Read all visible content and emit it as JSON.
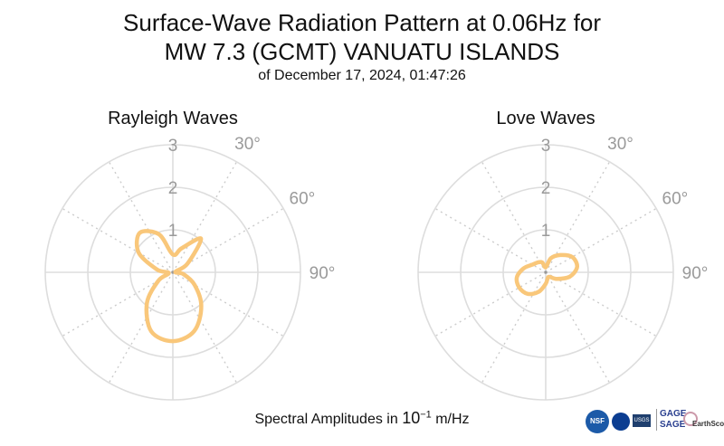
{
  "title_line1": "Surface-Wave Radiation Pattern at 0.06Hz for",
  "title_line2": "MW 7.3 (GCMT) VANUATU ISLANDS",
  "subtitle": "of December 17, 2024, 01:47:26",
  "footer": {
    "prefix": "Spectral Amplitudes in ",
    "base": "10",
    "exponent": "−1",
    "unit": " m/Hz"
  },
  "logos": {
    "nsf": "NSF",
    "usgs": "USGS",
    "gage": "GAGE",
    "sage": "SAGE",
    "earthscope": "EarthScope"
  },
  "colors": {
    "pattern": "#f9c77a",
    "grid_solid": "#dddddd",
    "grid_dotted": "#cccccc",
    "tick_text": "#9a9a9a"
  },
  "chart_data": [
    {
      "type": "polar-line",
      "title": "Rayleigh Waves",
      "r_ticks": [
        1,
        2,
        3
      ],
      "r_max": 3,
      "theta_ticks": [
        {
          "deg": 30,
          "label": "30°"
        },
        {
          "deg": 60,
          "label": "60°"
        },
        {
          "deg": 90,
          "label": "90°"
        }
      ],
      "theta_zero": "north",
      "theta_direction": "clockwise",
      "series": [
        {
          "theta_deg": [
            0,
            20,
            40,
            60,
            80,
            100,
            120,
            140,
            160,
            180,
            200,
            220,
            240,
            260,
            280,
            300,
            320,
            340,
            360
          ],
          "r": [
            0.42,
            0.6,
            1.03,
            0.39,
            0.06,
            0.25,
            0.59,
            1.04,
            1.47,
            1.62,
            1.48,
            0.95,
            0.39,
            0.1,
            0.38,
            0.93,
            1.21,
            0.95,
            0.42
          ]
        }
      ]
    },
    {
      "type": "polar-line",
      "title": "Love Waves",
      "r_ticks": [
        1,
        2,
        3
      ],
      "r_max": 3,
      "theta_ticks": [
        {
          "deg": 30,
          "label": "30°"
        },
        {
          "deg": 60,
          "label": "60°"
        },
        {
          "deg": 90,
          "label": "90°"
        }
      ],
      "theta_zero": "north",
      "theta_direction": "clockwise",
      "series": [
        {
          "theta_deg": [
            0,
            20,
            40,
            60,
            80,
            100,
            120,
            140,
            160,
            180,
            200,
            220,
            240,
            260,
            280,
            300,
            320,
            340,
            360
          ],
          "r": [
            0.12,
            0.35,
            0.53,
            0.72,
            0.75,
            0.58,
            0.31,
            0.14,
            0.14,
            0.27,
            0.49,
            0.66,
            0.72,
            0.69,
            0.53,
            0.36,
            0.3,
            0.25,
            0.12
          ]
        }
      ]
    }
  ]
}
